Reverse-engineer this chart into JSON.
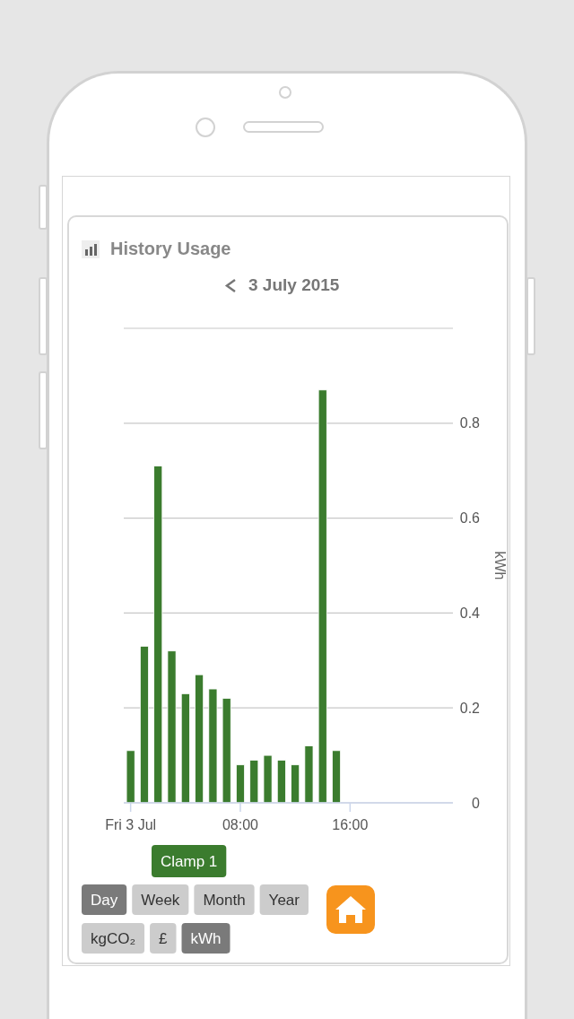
{
  "chart_data": {
    "type": "bar",
    "title": "History Usage",
    "subtitle": "3 July 2015",
    "ylabel": "kWh",
    "x": [
      0,
      1,
      2,
      3,
      4,
      5,
      6,
      7,
      8,
      9,
      10,
      11,
      12,
      13,
      14,
      15
    ],
    "xlim": [
      -0.5,
      23.5
    ],
    "xticks": [
      {
        "value": 0,
        "label": "Fri 3 Jul"
      },
      {
        "value": 8,
        "label": "08:00"
      },
      {
        "value": 16,
        "label": "16:00"
      }
    ],
    "ylim": [
      0,
      1
    ],
    "yticks": [
      0,
      0.2,
      0.4,
      0.6,
      0.8,
      {
        "value": 1,
        "label": null
      }
    ],
    "grid": "y",
    "legend": "bottom",
    "series": [
      {
        "name": "Clamp 1",
        "color": "#3b7c2e",
        "values": [
          0.11,
          0.33,
          0.71,
          0.32,
          0.23,
          0.27,
          0.24,
          0.22,
          0.08,
          0.09,
          0.1,
          0.09,
          0.08,
          0.12,
          0.87,
          0.11
        ]
      }
    ],
    "annotations": [
      "Day",
      "Week",
      "Month",
      "Year",
      "kgCO₂",
      "£",
      "kWh"
    ]
  }
}
